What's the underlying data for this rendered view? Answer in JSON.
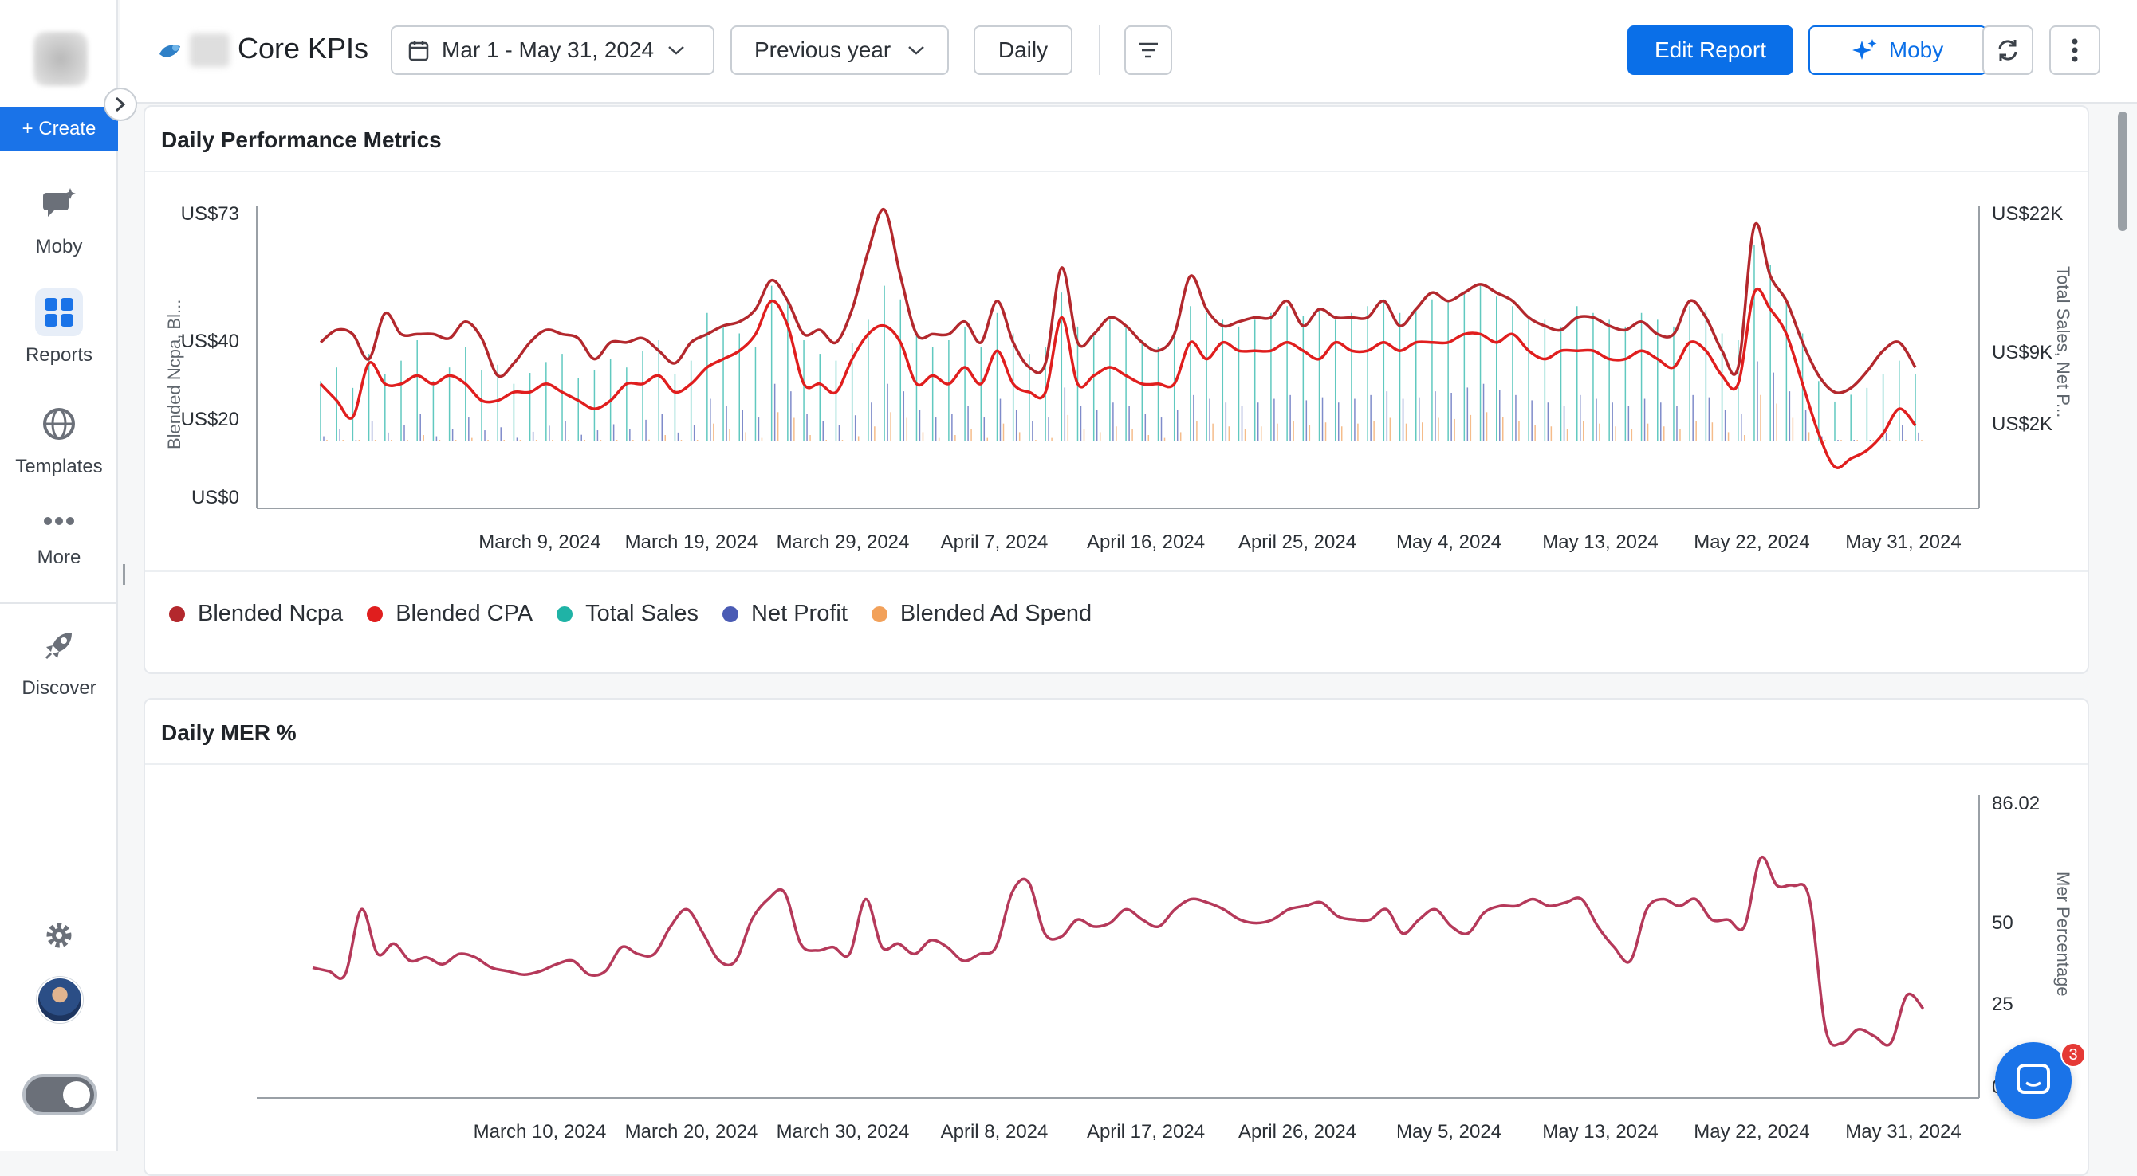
{
  "sidebar": {
    "create_label": "+ Create",
    "items": [
      {
        "label": "Moby",
        "icon": "chat-sparkle-icon"
      },
      {
        "label": "Reports",
        "icon": "grid-icon"
      },
      {
        "label": "Templates",
        "icon": "globe-icon"
      },
      {
        "label": "More",
        "icon": "more-dots-icon"
      },
      {
        "label": "Discover",
        "icon": "rocket-icon"
      }
    ]
  },
  "header": {
    "title": "Core KPIs",
    "date_range": "Mar 1 - May 31, 2024",
    "compare": "Previous year",
    "granularity": "Daily",
    "edit_label": "Edit Report",
    "moby_label": "Moby"
  },
  "colors": {
    "accent": "#0a6fe8",
    "blended_ncpa": "#b3282d",
    "blended_cpa": "#e01e1e",
    "total_sales": "#1fb3a6",
    "net_profit": "#4a5bb4",
    "blended_ad_spend": "#f2a15a",
    "mer_line": "#b5395a"
  },
  "chat_badge": "3",
  "chart1": {
    "title": "Daily Performance Metrics",
    "y_left_ticks": [
      "US$73",
      "US$40",
      "US$20",
      "US$0"
    ],
    "y_right_ticks": [
      "US$22K",
      "US$9K",
      "US$2K"
    ],
    "y_left_label": "Blended Ncpa, Bl...",
    "y_right_label": "Total Sales, Net P...",
    "x_ticks": [
      "March 9, 2024",
      "March 19, 2024",
      "March 29, 2024",
      "April 7, 2024",
      "April 16, 2024",
      "April 25, 2024",
      "May 4, 2024",
      "May 13, 2024",
      "May 22, 2024",
      "May 31, 2024"
    ],
    "legend": [
      "Blended Ncpa",
      "Blended CPA",
      "Total Sales",
      "Net Profit",
      "Blended Ad Spend"
    ]
  },
  "chart2": {
    "title": "Daily MER %",
    "y_ticks": [
      "86.02",
      "50",
      "25",
      "0"
    ],
    "y_label": "Mer Percentage",
    "x_ticks": [
      "March 10, 2024",
      "March 20, 2024",
      "March 30, 2024",
      "April 8, 2024",
      "April 17, 2024",
      "April 26, 2024",
      "May 5, 2024",
      "May 13, 2024",
      "May 22, 2024",
      "May 31, 2024"
    ]
  },
  "chart_data": [
    {
      "type": "line",
      "title": "Daily Performance Metrics",
      "x_range": [
        "2024-03-01",
        "2024-05-31"
      ],
      "ylim_left": [
        0,
        73
      ],
      "ylim_right": [
        2000,
        22000
      ],
      "series": [
        {
          "name": "Blended Ncpa",
          "axis": "left",
          "values": [
            40,
            43,
            42,
            36,
            47,
            42,
            42,
            42,
            41,
            45,
            41,
            32,
            35,
            40,
            43,
            42,
            41,
            36,
            40,
            40,
            41,
            38,
            35,
            40,
            42,
            44,
            45,
            48,
            55,
            50,
            42,
            43,
            40,
            48,
            62,
            72,
            56,
            42,
            42,
            42,
            45,
            40,
            50,
            40,
            34,
            35,
            58,
            40,
            42,
            46,
            44,
            40,
            38,
            42,
            56,
            48,
            44,
            45,
            46,
            46,
            50,
            44,
            48,
            46,
            46,
            46,
            50,
            44,
            48,
            52,
            50,
            52,
            54,
            52,
            50,
            46,
            44,
            43,
            46,
            46,
            44,
            43,
            45,
            42,
            42,
            50,
            46,
            38,
            34,
            68,
            56,
            50,
            40,
            32,
            28,
            29,
            33,
            38,
            40,
            34
          ]
        },
        {
          "name": "Blended CPA",
          "axis": "left",
          "values": [
            30,
            26,
            22,
            35,
            30,
            30,
            32,
            30,
            32,
            30,
            26,
            26,
            28,
            28,
            30,
            28,
            26,
            24,
            26,
            30,
            30,
            32,
            28,
            30,
            34,
            36,
            38,
            42,
            50,
            44,
            30,
            30,
            28,
            36,
            42,
            44,
            40,
            30,
            32,
            30,
            34,
            30,
            38,
            30,
            28,
            28,
            46,
            30,
            32,
            34,
            32,
            30,
            30,
            30,
            40,
            36,
            40,
            38,
            38,
            38,
            40,
            38,
            36,
            40,
            38,
            38,
            40,
            38,
            40,
            40,
            40,
            42,
            42,
            40,
            42,
            38,
            36,
            38,
            38,
            38,
            36,
            36,
            38,
            36,
            34,
            40,
            38,
            32,
            30,
            52,
            48,
            42,
            30,
            18,
            10,
            12,
            14,
            18,
            24,
            20
          ]
        },
        {
          "name": "Total Sales",
          "axis": "right",
          "values": [
            9000,
            10000,
            8500,
            11000,
            9500,
            10500,
            12000,
            9000,
            10000,
            11500,
            9800,
            10200,
            8800,
            9600,
            10400,
            11000,
            9200,
            9800,
            10600,
            10000,
            11200,
            12000,
            9500,
            10500,
            14000,
            13000,
            12500,
            11500,
            16000,
            15000,
            12000,
            11000,
            10500,
            11800,
            13500,
            16000,
            15000,
            12500,
            11500,
            12000,
            13000,
            11500,
            14000,
            12500,
            11000,
            11500,
            15500,
            13000,
            12500,
            13500,
            13000,
            12000,
            11500,
            12500,
            14500,
            14000,
            13500,
            13000,
            13500,
            14000,
            14500,
            13800,
            14200,
            13500,
            14000,
            14500,
            15000,
            14000,
            14200,
            15000,
            14800,
            15500,
            16000,
            15200,
            14500,
            13800,
            13500,
            13000,
            14500,
            14000,
            13500,
            13000,
            14000,
            13500,
            13000,
            14500,
            14200,
            12500,
            12000,
            19000,
            17500,
            15000,
            12500,
            9000,
            7500,
            8000,
            8500,
            9500,
            10500,
            9500
          ]
        }
      ]
    },
    {
      "type": "line",
      "title": "Daily MER %",
      "x_range": [
        "2024-03-01",
        "2024-05-31"
      ],
      "ylim": [
        0,
        86.02
      ],
      "series": [
        {
          "name": "Mer Percentage",
          "values": [
            38,
            37,
            36,
            55,
            42,
            45,
            40,
            41,
            39,
            42,
            41,
            38,
            37,
            36,
            37,
            39,
            40,
            36,
            37,
            44,
            42,
            42,
            50,
            55,
            48,
            40,
            40,
            52,
            58,
            60,
            45,
            43,
            44,
            42,
            58,
            44,
            45,
            42,
            46,
            44,
            40,
            42,
            44,
            60,
            63,
            48,
            47,
            52,
            50,
            51,
            55,
            52,
            50,
            55,
            58,
            57,
            55,
            52,
            51,
            52,
            55,
            56,
            57,
            53,
            52,
            52,
            55,
            48,
            52,
            55,
            50,
            48,
            54,
            56,
            56,
            58,
            56,
            57,
            58,
            50,
            44,
            40,
            55,
            58,
            56,
            58,
            52,
            52,
            50,
            70,
            62,
            62,
            58,
            20,
            16,
            20,
            18,
            16,
            30,
            26
          ]
        }
      ]
    }
  ]
}
